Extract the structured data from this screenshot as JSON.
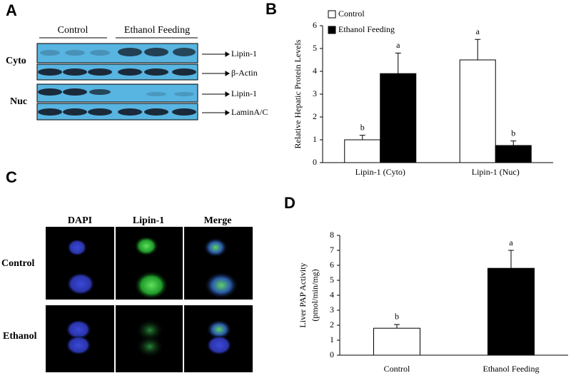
{
  "panel_labels": [
    "A",
    "B",
    "C",
    "D"
  ],
  "blot": {
    "groups": [
      "Control",
      "Ethanol Feeding"
    ],
    "sections": [
      {
        "name": "Cyto",
        "bands": [
          "Lipin-1",
          "β-Actin"
        ]
      },
      {
        "name": "Nuc",
        "bands": [
          "Lipin-1",
          "LaminA/C"
        ]
      }
    ]
  },
  "microscopy": {
    "columns": [
      "DAPI",
      "Lipin-1",
      "Merge"
    ],
    "rows": [
      "Control",
      "Ethanol"
    ]
  },
  "chart_data": [
    {
      "type": "bar",
      "ylabel": [
        "Relative Hepatic Protein Levels"
      ],
      "categories": [
        "Lipin-1 (Cyto)",
        "Lipin-1 (Nuc)"
      ],
      "series": [
        {
          "name": "Control",
          "color": "#ffffff",
          "values": [
            1.0,
            4.5
          ],
          "errors": [
            0.2,
            0.9
          ],
          "annotations": [
            "b",
            "a"
          ]
        },
        {
          "name": "Ethanol Feeding",
          "color": "#000000",
          "values": [
            3.9,
            0.75
          ],
          "errors": [
            0.9,
            0.2
          ],
          "annotations": [
            "a",
            "b"
          ]
        }
      ],
      "ylim": [
        0,
        6
      ],
      "yticks": [
        0,
        1,
        2,
        3,
        4,
        5,
        6
      ],
      "grid": false,
      "legend": "top-left"
    },
    {
      "type": "bar",
      "ylabel": [
        "Liver PAP Activity",
        "(pmol/min/mg)"
      ],
      "categories": [
        "Control",
        "Ethanol Feeding"
      ],
      "values": [
        1.8,
        5.8
      ],
      "errors": [
        0.25,
        1.2
      ],
      "colors": [
        "#ffffff",
        "#000000"
      ],
      "annotations": [
        "b",
        "a"
      ],
      "ylim": [
        0,
        8
      ],
      "yticks": [
        0,
        1,
        2,
        3,
        4,
        5,
        6,
        7,
        8
      ],
      "grid": false
    }
  ]
}
